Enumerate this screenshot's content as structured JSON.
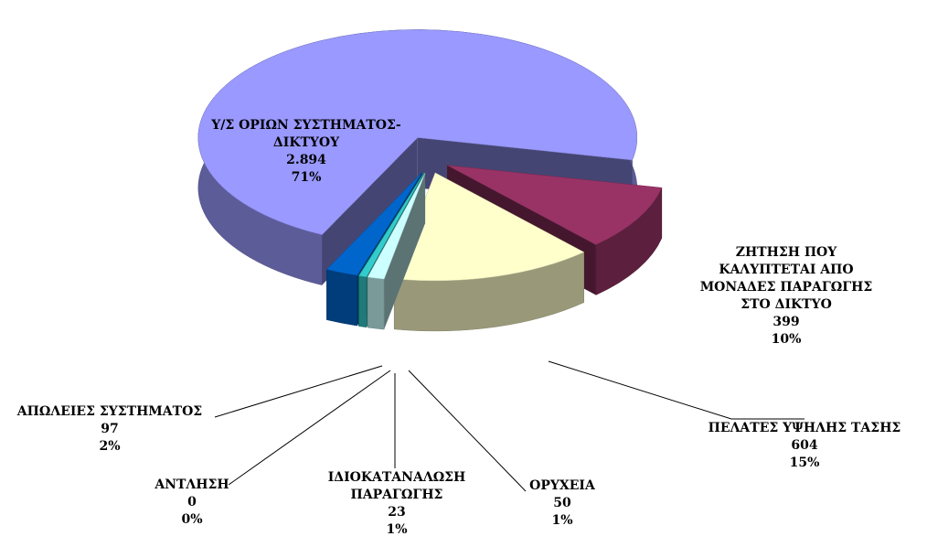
{
  "chart_data": {
    "type": "pie3d",
    "categories": [
      [
        "ΖΗΤΗΣΗ ΠΟΥ",
        "ΚΑΛΥΠΤΕΤΑΙ ΑΠΟ",
        "ΜΟΝΑΔΕΣ ΠΑΡΑΓΩΓΗΣ",
        "ΣΤΟ ΔΙΚΤΥΟ"
      ],
      [
        "ΠΕΛΑΤΕΣ ΥΨΗΛΗΣ ΤΑΣΗΣ"
      ],
      [
        "ΟΡΥΧΕΙΑ"
      ],
      [
        "ΙΔΙΟΚΑΤΑΝΑΛΩΣΗ",
        "ΠΑΡΑΓΩΓΗΣ"
      ],
      [
        "ΑΝΤΛΗΣΗ"
      ],
      [
        "ΑΠΩΛΕΙΕΣ ΣΥΣΤΗΜΑΤΟΣ"
      ],
      [
        "Υ/Σ ΟΡΙΩΝ ΣΥΣΤΗΜΑΤΟΣ-",
        "ΔΙΚΤΥΟΥ"
      ]
    ],
    "values": [
      399,
      604,
      50,
      23,
      0,
      97,
      2894
    ],
    "value_labels": [
      "399",
      "604",
      "50",
      "23",
      "0",
      "97",
      "2.894"
    ],
    "percents": [
      10,
      15,
      1,
      1,
      0,
      2,
      71
    ],
    "percent_labels": [
      "10%",
      "15%",
      "1%",
      "1%",
      "0%",
      "2%",
      "71%"
    ],
    "colors": [
      "#993366",
      "#ffffcc",
      "#ccffff",
      "#33cccc",
      "#00b0b0",
      "#0066cc",
      "#9999ff"
    ]
  }
}
